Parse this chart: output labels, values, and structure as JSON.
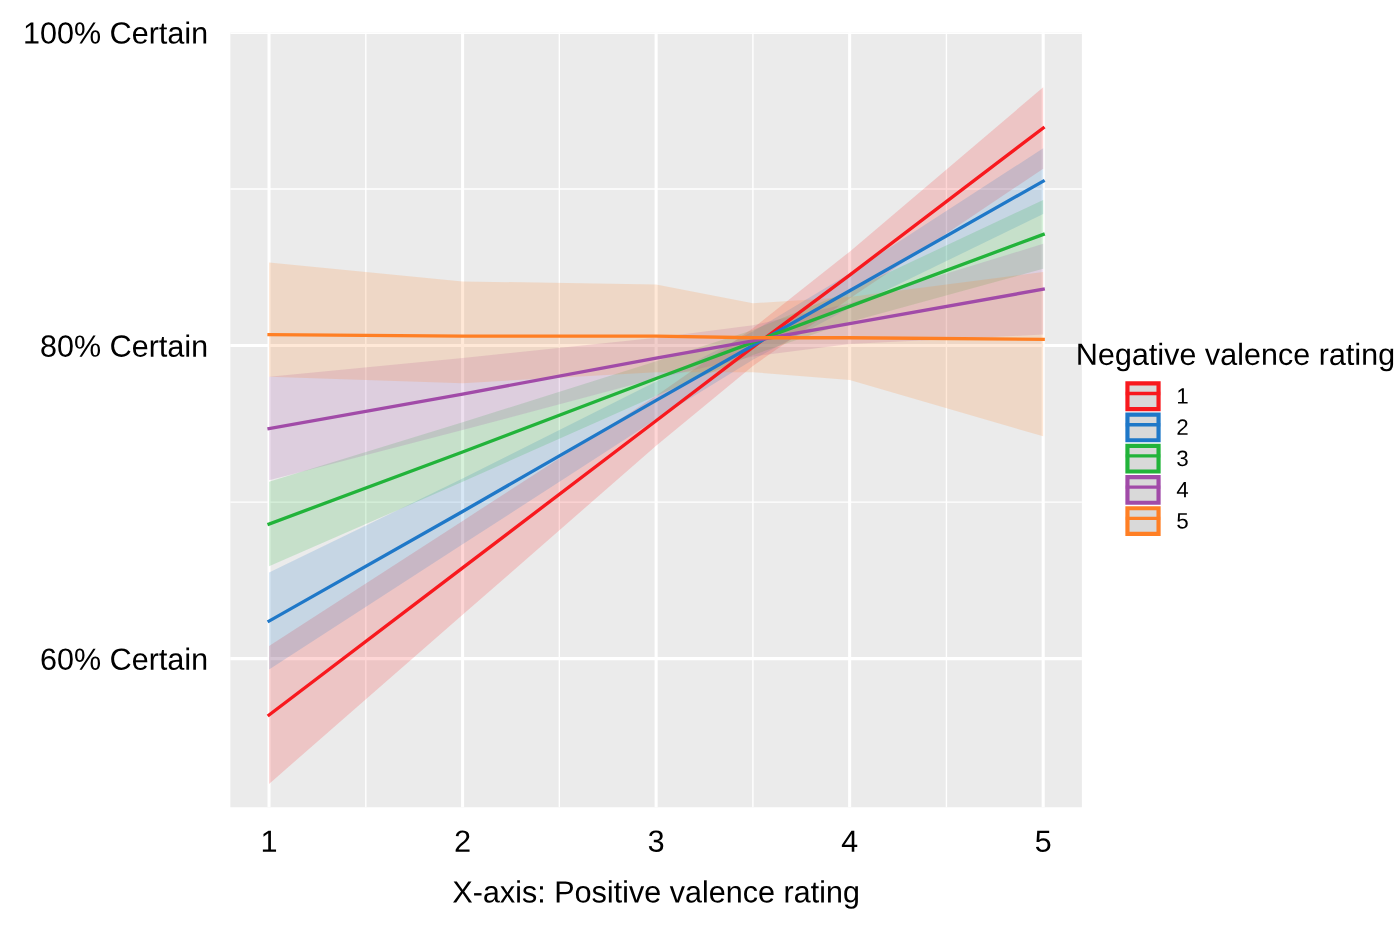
{
  "chart_data": {
    "type": "line",
    "xlabel": "X-axis: Positive valence rating",
    "legend_title": "Negative valence rating",
    "xlim": [
      0.8,
      5.2
    ],
    "ylim": [
      50.5,
      100
    ],
    "xticks": [
      1,
      2,
      3,
      4,
      5
    ],
    "yticks": [
      {
        "value": 60,
        "label": "60% Certain"
      },
      {
        "value": 80,
        "label": "80% Certain"
      },
      {
        "value": 100,
        "label": "100% Certain"
      }
    ],
    "grid": true,
    "legend": "right",
    "marker": "none",
    "line_style": "solid",
    "series": [
      {
        "name": "1",
        "color": "#f8191e",
        "x": [
          1,
          2,
          3,
          3.5,
          4,
          5
        ],
        "values": [
          56.4,
          65.8,
          75.2,
          79.9,
          84.5,
          93.9
        ],
        "lower": [
          52.0,
          62.8,
          73.6,
          78.7,
          83.0,
          91.3
        ],
        "upper": [
          60.8,
          68.8,
          76.8,
          81.1,
          86.0,
          96.5
        ]
      },
      {
        "name": "2",
        "color": "#1f78c8",
        "x": [
          1,
          2,
          3,
          3.5,
          4,
          5
        ],
        "values": [
          62.4,
          69.4,
          76.5,
          80.0,
          83.5,
          90.5
        ],
        "lower": [
          59.3,
          67.3,
          75.3,
          79.1,
          82.4,
          88.4
        ],
        "upper": [
          65.5,
          71.5,
          77.7,
          80.9,
          84.6,
          92.6
        ]
      },
      {
        "name": "3",
        "color": "#22b33a",
        "x": [
          1,
          2,
          3,
          3.5,
          4,
          5
        ],
        "values": [
          68.6,
          73.2,
          77.9,
          80.2,
          82.5,
          87.1
        ],
        "lower": [
          65.9,
          71.3,
          76.8,
          79.4,
          81.5,
          84.9
        ],
        "upper": [
          71.3,
          75.1,
          79.0,
          81.0,
          83.5,
          89.3
        ]
      },
      {
        "name": "4",
        "color": "#a14ba8",
        "x": [
          1,
          2,
          3,
          3.5,
          4,
          5
        ],
        "values": [
          74.7,
          76.9,
          79.2,
          80.3,
          81.4,
          83.6
        ],
        "lower": [
          71.4,
          74.6,
          77.9,
          79.3,
          80.1,
          80.7
        ],
        "upper": [
          78.0,
          79.2,
          80.5,
          81.3,
          82.7,
          86.5
        ]
      },
      {
        "name": "5",
        "color": "#ff7f24",
        "x": [
          1,
          2,
          3,
          3.5,
          4,
          5
        ],
        "values": [
          80.7,
          80.6,
          80.6,
          80.5,
          80.5,
          80.4
        ],
        "lower": [
          78.0,
          77.6,
          78.3,
          78.3,
          77.8,
          74.2
        ],
        "upper": [
          85.3,
          84.1,
          83.9,
          82.7,
          83.1,
          84.7
        ]
      }
    ]
  }
}
